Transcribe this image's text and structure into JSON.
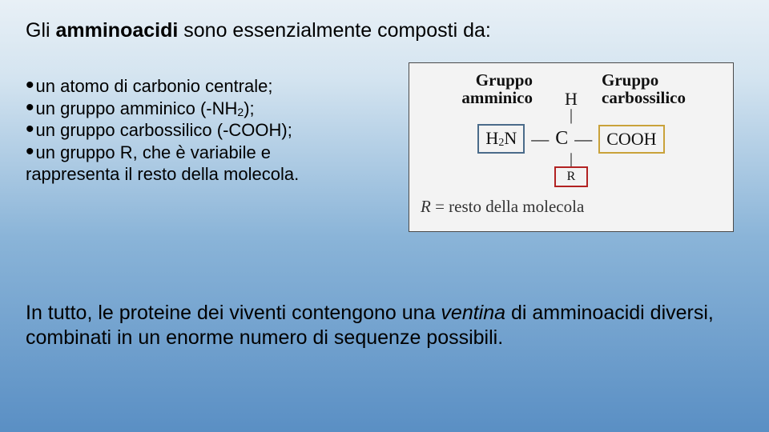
{
  "title": {
    "prefix": "Gli ",
    "bold": "amminoacidi",
    "suffix": " sono essenzialmente composti da:"
  },
  "bullets": {
    "b1": "un atomo di carbonio centrale;",
    "b2_pre": "un gruppo amminico (-NH",
    "b2_sub": "2",
    "b2_post": ");",
    "b3": "un gruppo carbossilico (-COOH);",
    "b4": "un gruppo R, che è variabile e",
    "b4_wrap": "rappresenta il resto della molecola."
  },
  "diagram": {
    "label_left_l1": "Gruppo",
    "label_left_l2": "amminico",
    "label_right_l1": "Gruppo",
    "label_right_l2": "carbossilico",
    "top_H": "H",
    "vbar": "|",
    "h2n_pre": "H",
    "h2n_sub": "2",
    "h2n_post": "N",
    "dash": "—",
    "center_C": "C",
    "cooh": "COOH",
    "R": "R",
    "caption_pre": "R",
    "caption_eq": " = resto della molecola",
    "box_colors": {
      "h2n": "#4a6b8a",
      "cooh": "#c9a23a",
      "r": "#b22222"
    },
    "background": "#f3f3f3",
    "border": "#4a4a4a"
  },
  "bottom": {
    "pre": "In tutto, le proteine dei viventi contengono una ",
    "italic": "ventina",
    "post": " di amminoacidi diversi, combinati in un enorme numero di sequenze possibili."
  },
  "style": {
    "gradient_top": "#e8f0f6",
    "gradient_bottom": "#5a8fc4",
    "text_color": "#000000",
    "title_fontsize": 25,
    "bullet_fontsize": 22,
    "bottom_fontsize": 25,
    "diagram_font": "Georgia"
  }
}
